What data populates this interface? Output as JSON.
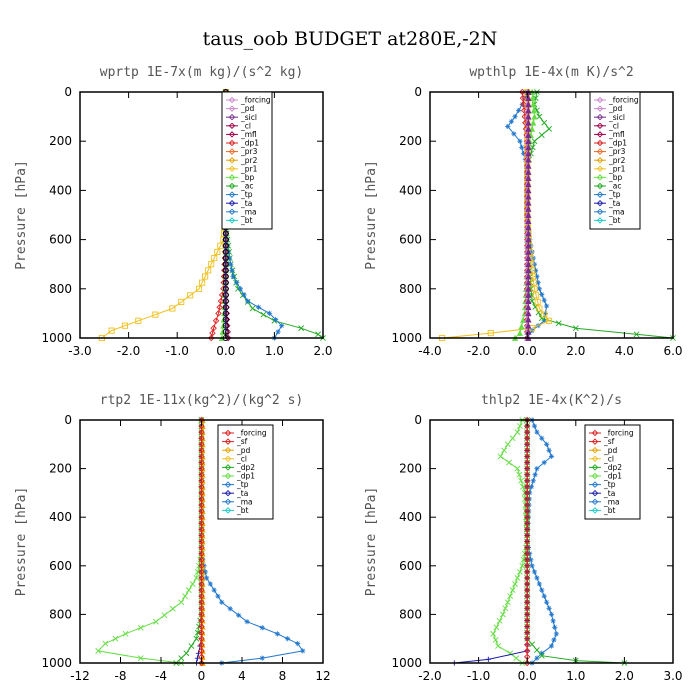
{
  "title": "taus_oob  BUDGET at280E,-2N",
  "colors": {
    "black": "#000000",
    "pink": "#cc88cc",
    "purple": "#7a2b8c",
    "maroon": "#a0004a",
    "red": "#dd2222",
    "orange": "#ee6622",
    "gold": "#e6a000",
    "yellow": "#f0c020",
    "green": "#22aa22",
    "lightgreen": "#66dd44",
    "blue": "#2277cc",
    "navy": "#1a1aaa",
    "cyan": "#22cccc"
  },
  "chart_data": [
    {
      "type": "line",
      "title": "wprtp   1E-7x(m kg)/(s^2 kg)",
      "ylabel": "Pressure [hPa]",
      "xlim": [
        -3.0,
        2.0
      ],
      "ylim": [
        1000,
        0
      ],
      "y_reversed": true,
      "xticks": [
        -3.0,
        -2.0,
        -1.0,
        0.0,
        1.0,
        2.0
      ],
      "xtick_labels": [
        "-3.0",
        "-2.0",
        "-1.0",
        "0.0",
        "1.0",
        "2.0"
      ],
      "yticks": [
        0,
        200,
        400,
        600,
        800,
        1000
      ],
      "legend": [
        "_forcing",
        "_pd",
        "_sicl",
        "_cl",
        "_mfl",
        "_dp1",
        "_pr3",
        "_pr2",
        "_pr1",
        "_bp",
        "_ac",
        "_tp",
        "_ta",
        "_ma",
        "_bt"
      ],
      "series": [
        {
          "name": "_pr1",
          "color": "yellow",
          "marker": "square",
          "points": [
            [
              0,
              0
            ],
            [
              0,
              500
            ],
            [
              -0.05,
              600
            ],
            [
              -0.3,
              700
            ],
            [
              -0.55,
              800
            ],
            [
              -1.1,
              880
            ],
            [
              -1.8,
              930
            ],
            [
              -2.35,
              970
            ],
            [
              -2.55,
              1000
            ]
          ]
        },
        {
          "name": "_ac",
          "color": "green",
          "marker": "x",
          "points": [
            [
              0,
              0
            ],
            [
              0,
              550
            ],
            [
              0.1,
              700
            ],
            [
              0.25,
              800
            ],
            [
              0.55,
              880
            ],
            [
              1.0,
              930
            ],
            [
              1.55,
              960
            ],
            [
              1.9,
              985
            ],
            [
              2.0,
              1000
            ]
          ]
        },
        {
          "name": "_tp",
          "color": "blue",
          "marker": "star",
          "points": [
            [
              0,
              0
            ],
            [
              0,
              550
            ],
            [
              0.05,
              650
            ],
            [
              0.15,
              750
            ],
            [
              0.45,
              850
            ],
            [
              0.9,
              900
            ],
            [
              1.15,
              950
            ],
            [
              1.0,
              1000
            ]
          ]
        },
        {
          "name": "_dp1",
          "color": "red",
          "marker": "diamond",
          "points": [
            [
              0,
              0
            ],
            [
              0,
              600
            ],
            [
              -0.05,
              800
            ],
            [
              -0.15,
              900
            ],
            [
              -0.25,
              960
            ],
            [
              -0.3,
              1000
            ]
          ]
        },
        {
          "name": "_bp",
          "color": "lightgreen",
          "marker": "triangle",
          "points": [
            [
              0,
              0
            ],
            [
              0,
              700
            ],
            [
              -0.02,
              850
            ],
            [
              -0.05,
              950
            ],
            [
              -0.08,
              1000
            ]
          ]
        },
        {
          "name": "_cl",
          "color": "maroon",
          "marker": "diamond",
          "points": [
            [
              0,
              0
            ],
            [
              0,
              800
            ],
            [
              0.03,
              950
            ],
            [
              0.05,
              1000
            ]
          ]
        },
        {
          "name": "_forcing",
          "color": "black",
          "marker": "circle",
          "points": [
            [
              0,
              0
            ],
            [
              0,
              1000
            ]
          ]
        },
        {
          "name": "_ma",
          "color": "navy",
          "marker": "none",
          "points": [
            [
              0,
              0
            ],
            [
              0,
              1000
            ]
          ]
        }
      ]
    },
    {
      "type": "line",
      "title": "wpthlp   1E-4x(m K)/s^2",
      "ylabel": "Pressure [hPa]",
      "xlim": [
        -4.0,
        6.0
      ],
      "ylim": [
        1000,
        0
      ],
      "y_reversed": true,
      "xticks": [
        -4.0,
        -2.0,
        0.0,
        2.0,
        4.0,
        6.0
      ],
      "xtick_labels": [
        "-4.0",
        "-2.0",
        "0.0",
        "2.0",
        "4.0",
        "6.0"
      ],
      "yticks": [
        0,
        200,
        400,
        600,
        800,
        1000
      ],
      "legend": [
        "_forcing",
        "_pd",
        "_sicl",
        "_cl",
        "_mfl",
        "_dp1",
        "_pr3",
        "_pr2",
        "_pr1",
        "_bp",
        "_ac",
        "_tp",
        "_ta",
        "_ma",
        "_bt"
      ],
      "series": [
        {
          "name": "_tp",
          "color": "blue",
          "marker": "star",
          "points": [
            [
              0,
              0
            ],
            [
              -0.2,
              50
            ],
            [
              -0.5,
              100
            ],
            [
              -0.8,
              140
            ],
            [
              -0.3,
              200
            ],
            [
              0,
              300
            ],
            [
              0,
              500
            ],
            [
              0.1,
              600
            ],
            [
              0.3,
              700
            ],
            [
              0.5,
              800
            ],
            [
              0.8,
              870
            ],
            [
              0.7,
              930
            ],
            [
              0.2,
              970
            ],
            [
              0,
              1000
            ]
          ]
        },
        {
          "name": "_ac",
          "color": "green",
          "marker": "x",
          "points": [
            [
              0.4,
              0
            ],
            [
              0.3,
              50
            ],
            [
              0.5,
              100
            ],
            [
              0.9,
              150
            ],
            [
              0.3,
              200
            ],
            [
              0,
              300
            ],
            [
              0,
              600
            ],
            [
              0.2,
              850
            ],
            [
              0.6,
              920
            ],
            [
              2.0,
              960
            ],
            [
              4.5,
              985
            ],
            [
              6.0,
              1000
            ]
          ]
        },
        {
          "name": "_pr1",
          "color": "yellow",
          "marker": "square",
          "points": [
            [
              0,
              0
            ],
            [
              0,
              500
            ],
            [
              0.1,
              650
            ],
            [
              0.3,
              800
            ],
            [
              0.5,
              880
            ],
            [
              0.9,
              930
            ],
            [
              0.2,
              960
            ],
            [
              -1.5,
              980
            ],
            [
              -3.5,
              1000
            ]
          ]
        },
        {
          "name": "_bp",
          "color": "lightgreen",
          "marker": "triangle",
          "points": [
            [
              0.2,
              0
            ],
            [
              0.3,
              100
            ],
            [
              0.1,
              200
            ],
            [
              0,
              300
            ],
            [
              0,
              700
            ],
            [
              -0.1,
              900
            ],
            [
              -0.3,
              980
            ],
            [
              -0.5,
              1000
            ]
          ]
        },
        {
          "name": "_dp1",
          "color": "red",
          "marker": "diamond",
          "points": [
            [
              -0.2,
              0
            ],
            [
              -0.1,
              100
            ],
            [
              0,
              200
            ],
            [
              0,
              1000
            ]
          ]
        },
        {
          "name": "_pd",
          "color": "pink",
          "marker": "triangle",
          "points": [
            [
              0,
              0
            ],
            [
              0,
              1000
            ]
          ]
        },
        {
          "name": "_sicl",
          "color": "purple",
          "marker": "triangle",
          "points": [
            [
              0.05,
              0
            ],
            [
              0.05,
              1000
            ]
          ]
        }
      ]
    },
    {
      "type": "line",
      "title": "rtp2   1E-11x(kg^2)/(kg^2 s)",
      "ylabel": "Pressure [hPa]",
      "xlim": [
        -12,
        12
      ],
      "ylim": [
        1000,
        0
      ],
      "y_reversed": true,
      "xticks": [
        -12,
        -8,
        -4,
        0,
        4,
        8,
        12
      ],
      "xtick_labels": [
        "-12",
        "-8",
        "-4",
        "0",
        "4",
        "8",
        "12"
      ],
      "yticks": [
        0,
        200,
        400,
        600,
        800,
        1000
      ],
      "legend": [
        "_forcing",
        "_sf",
        "_pd",
        "_cl",
        "_dp2",
        "_dp1",
        "_tp",
        "_ta",
        "_ma",
        "_bt"
      ],
      "series": [
        {
          "name": "_tp",
          "color": "blue",
          "marker": "star",
          "points": [
            [
              0,
              0
            ],
            [
              0,
              550
            ],
            [
              0.5,
              650
            ],
            [
              2.0,
              750
            ],
            [
              4.5,
              830
            ],
            [
              7.5,
              880
            ],
            [
              9.5,
              920
            ],
            [
              10.0,
              950
            ],
            [
              6.0,
              980
            ],
            [
              2.0,
              1000
            ]
          ]
        },
        {
          "name": "_dp1",
          "color": "lightgreen",
          "marker": "x",
          "points": [
            [
              0,
              0
            ],
            [
              0,
              550
            ],
            [
              -0.5,
              650
            ],
            [
              -2.0,
              750
            ],
            [
              -4.5,
              830
            ],
            [
              -7.5,
              880
            ],
            [
              -9.5,
              920
            ],
            [
              -10.2,
              950
            ],
            [
              -6.0,
              980
            ],
            [
              -2.0,
              1000
            ]
          ]
        },
        {
          "name": "_dp2",
          "color": "green",
          "marker": "x",
          "points": [
            [
              0,
              0
            ],
            [
              0,
              800
            ],
            [
              -0.5,
              900
            ],
            [
              -1.5,
              960
            ],
            [
              -2.5,
              1000
            ]
          ]
        },
        {
          "name": "_ta",
          "color": "navy",
          "marker": "plus",
          "points": [
            [
              0,
              0
            ],
            [
              0,
              900
            ],
            [
              -0.3,
              960
            ],
            [
              -0.5,
              1000
            ]
          ]
        },
        {
          "name": "_pd",
          "color": "gold",
          "marker": "triangle",
          "points": [
            [
              0.1,
              0
            ],
            [
              0.1,
              1000
            ]
          ]
        },
        {
          "name": "_forcing",
          "color": "red",
          "marker": "diamond",
          "points": [
            [
              0,
              0
            ],
            [
              0,
              1000
            ]
          ]
        }
      ]
    },
    {
      "type": "line",
      "title": "thlp2   1E-4x(K^2)/s",
      "ylabel": "Pressure [hPa]",
      "xlim": [
        -2.0,
        3.0
      ],
      "ylim": [
        1000,
        0
      ],
      "y_reversed": true,
      "xticks": [
        -2.0,
        -1.0,
        0.0,
        1.0,
        2.0,
        3.0
      ],
      "xtick_labels": [
        "-2.0",
        "-1.0",
        "0.0",
        "1.0",
        "2.0",
        "3.0"
      ],
      "yticks": [
        0,
        200,
        400,
        600,
        800,
        1000
      ],
      "legend": [
        "_forcing",
        "_sf",
        "_pd",
        "_cl",
        "_dp2",
        "_dp1",
        "_tp",
        "_ta",
        "_ma",
        "_bt"
      ],
      "series": [
        {
          "name": "_tp",
          "color": "blue",
          "marker": "star",
          "points": [
            [
              0.1,
              0
            ],
            [
              0.2,
              50
            ],
            [
              0.4,
              100
            ],
            [
              0.5,
              150
            ],
            [
              0.2,
              200
            ],
            [
              0.05,
              300
            ],
            [
              0,
              500
            ],
            [
              0.1,
              600
            ],
            [
              0.3,
              700
            ],
            [
              0.5,
              800
            ],
            [
              0.6,
              880
            ],
            [
              0.5,
              930
            ],
            [
              0.3,
              960
            ],
            [
              0.1,
              1000
            ]
          ]
        },
        {
          "name": "_dp1",
          "color": "lightgreen",
          "marker": "x",
          "points": [
            [
              -0.1,
              0
            ],
            [
              -0.2,
              50
            ],
            [
              -0.4,
              100
            ],
            [
              -0.55,
              150
            ],
            [
              -0.2,
              200
            ],
            [
              -0.05,
              300
            ],
            [
              0,
              500
            ],
            [
              -0.1,
              600
            ],
            [
              -0.3,
              700
            ],
            [
              -0.5,
              800
            ],
            [
              -0.7,
              880
            ],
            [
              -0.6,
              930
            ],
            [
              -0.35,
              960
            ],
            [
              -0.1,
              1000
            ]
          ]
        },
        {
          "name": "_dp2",
          "color": "green",
          "marker": "x",
          "points": [
            [
              0,
              0
            ],
            [
              0,
              900
            ],
            [
              0.3,
              970
            ],
            [
              1.0,
              990
            ],
            [
              2.0,
              1000
            ]
          ]
        },
        {
          "name": "_ta",
          "color": "navy",
          "marker": "plus",
          "points": [
            [
              0,
              0
            ],
            [
              0,
              950
            ],
            [
              -0.8,
              985
            ],
            [
              -1.5,
              1000
            ]
          ]
        },
        {
          "name": "_forcing",
          "color": "red",
          "marker": "diamond",
          "points": [
            [
              0,
              0
            ],
            [
              0,
              1000
            ]
          ]
        }
      ]
    }
  ]
}
